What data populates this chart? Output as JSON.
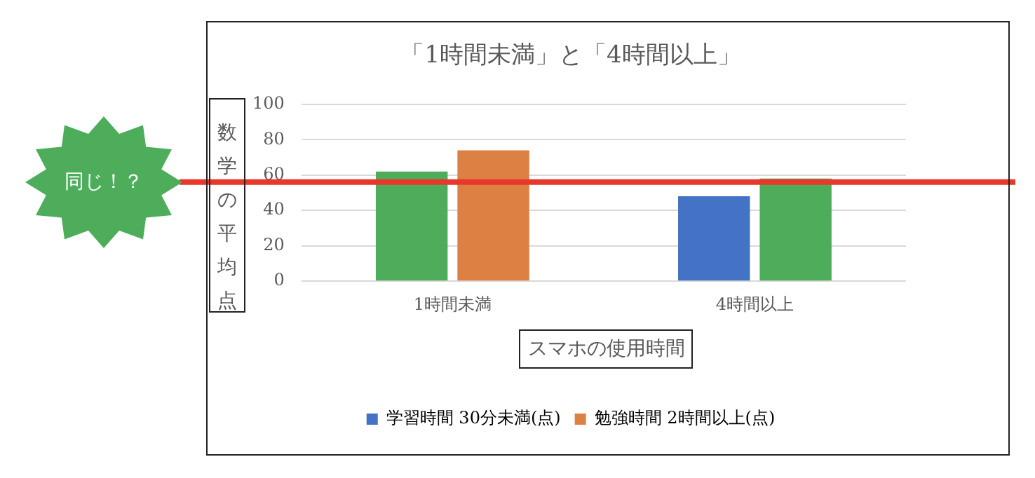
{
  "chart_data": {
    "type": "bar",
    "title": "「1時間未満」と「4時間以上」",
    "xlabel": "スマホの使用時間",
    "ylabel": "数学の平均点",
    "categories": [
      "1時間未満",
      "4時間以上"
    ],
    "series": [
      {
        "name": "学習時間 30分未満(点)",
        "color": "#4472c4",
        "colors": [
          "#4ead5b",
          "#4472c4"
        ],
        "values": [
          62,
          48
        ]
      },
      {
        "name": "勉強時間 2時間以上(点)",
        "color": "#dd8044",
        "colors": [
          "#dd8044",
          "#4ead5b"
        ],
        "values": [
          74,
          58
        ]
      }
    ],
    "ylim": [
      0,
      100
    ],
    "yticks": [
      0,
      20,
      40,
      60,
      80,
      100
    ],
    "grid": "y",
    "legend": "bottom",
    "ref_lines": [
      {
        "axis": "y",
        "value": 56,
        "label": "同じ！？",
        "color": "#e8382b"
      }
    ]
  }
}
